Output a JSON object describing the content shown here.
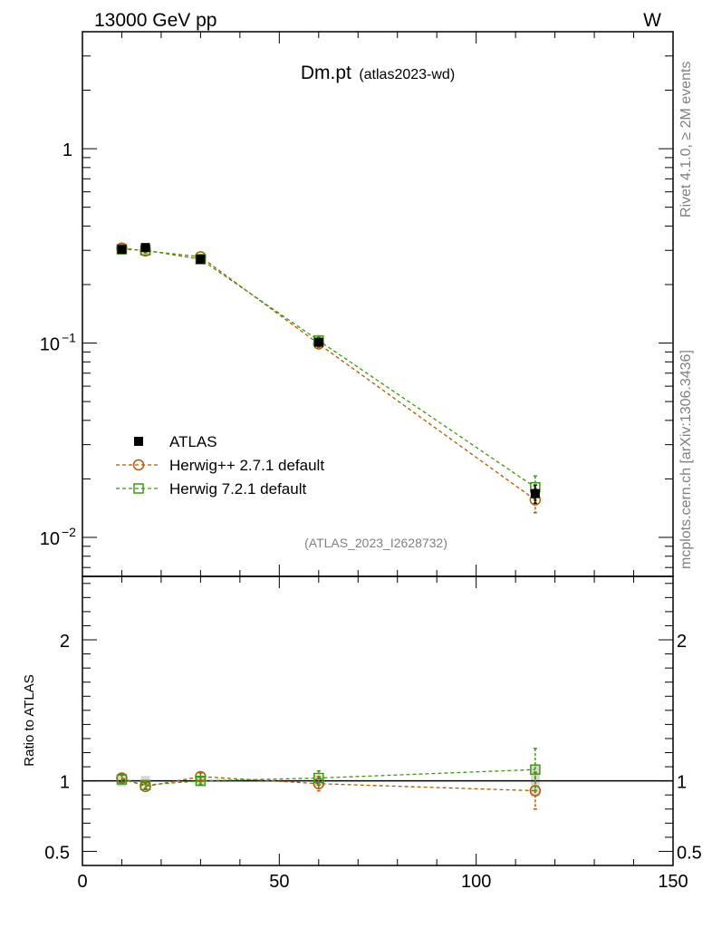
{
  "header": {
    "energy": "13000 GeV pp",
    "process": "W"
  },
  "side_labels": {
    "rivet": "Rivet 4.1.0, ≥ 2M events",
    "mcplots": "mcplots.cern.ch [arXiv:1306.3436]"
  },
  "chart_data": {
    "type": "scatter",
    "title": "Dm.pt",
    "subtitle": "(atlas2023-wd)",
    "watermark": "(ATLAS_2023_I2628732)",
    "xlim": [
      0,
      150
    ],
    "ylim": [
      0.0063,
      4.0
    ],
    "yscale": "log",
    "x_ticks": [
      {
        "value": 0,
        "label": "0"
      },
      {
        "value": 50,
        "label": "50"
      },
      {
        "value": 100,
        "label": "100"
      },
      {
        "value": 150,
        "label": "150"
      }
    ],
    "y_ticks": [
      {
        "value": 1,
        "label": "1"
      },
      {
        "value": 0.1,
        "label": "10",
        "exp": "−1"
      },
      {
        "value": 0.01,
        "label": "10",
        "exp": "−2"
      }
    ],
    "x": [
      10,
      16,
      30,
      60,
      115
    ],
    "series": [
      {
        "name": "ATLAS",
        "color": "#000000",
        "marker": "filled-square",
        "values": [
          0.303,
          0.31,
          0.27,
          0.101,
          0.0168
        ],
        "errors": [
          0.012,
          0.011,
          0.009,
          0.004,
          0.0018
        ]
      },
      {
        "name": "Herwig++ 2.7.1 default",
        "color": "#b35900",
        "marker": "open-circle",
        "values": [
          0.308,
          0.298,
          0.278,
          0.099,
          0.0156
        ],
        "errors": [
          0.01,
          0.007,
          0.007,
          0.004,
          0.0022
        ]
      },
      {
        "name": "Herwig 7.2.1 default",
        "color": "#3a9a10",
        "marker": "open-square",
        "values": [
          0.304,
          0.3,
          0.27,
          0.103,
          0.0181
        ],
        "errors": [
          0.01,
          0.007,
          0.007,
          0.004,
          0.0026
        ]
      }
    ],
    "ratio": {
      "ylabel": "Ratio to ATLAS",
      "ylim": [
        0.4,
        2.45
      ],
      "y_ticks": [
        {
          "value": 2,
          "label": "2"
        },
        {
          "value": 1,
          "label": "1"
        },
        {
          "value": 0.5,
          "label": "0.5"
        }
      ],
      "ref_band": [
        0.04,
        0.035,
        0.033,
        0.04,
        0.11
      ],
      "series": [
        {
          "name": "Herwig++ 2.7.1 default",
          "values": [
            1.02,
            0.96,
            1.03,
            0.98,
            0.93
          ],
          "errors": [
            0.03,
            0.02,
            0.025,
            0.05,
            0.13
          ]
        },
        {
          "name": "Herwig 7.2.1 default",
          "values": [
            1.01,
            0.97,
            1.0,
            1.02,
            1.08
          ],
          "errors": [
            0.03,
            0.02,
            0.025,
            0.05,
            0.15
          ]
        }
      ]
    }
  }
}
